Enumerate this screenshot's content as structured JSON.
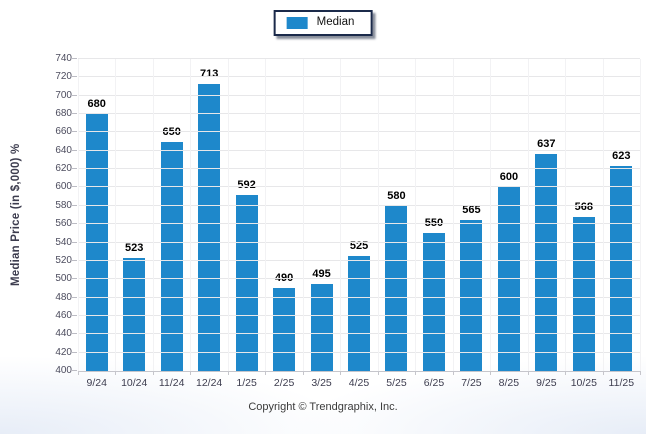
{
  "chart_data": {
    "type": "bar",
    "title": "",
    "categories": [
      "9/24",
      "10/24",
      "11/24",
      "12/24",
      "1/25",
      "2/25",
      "3/25",
      "4/25",
      "5/25",
      "6/25",
      "7/25",
      "8/25",
      "9/25",
      "10/25",
      "11/25"
    ],
    "series": [
      {
        "name": "Median",
        "color": "#1e88cb",
        "values": [
          680,
          523,
          650,
          713,
          592,
          490,
          495,
          525,
          580,
          550,
          565,
          600,
          637,
          568,
          623
        ]
      }
    ],
    "ylabel": "Median Price (in $,000) %",
    "xlabel": "",
    "ylim": [
      400,
      740
    ],
    "ytick_step": 20,
    "yticks": [
      400,
      420,
      440,
      460,
      480,
      500,
      520,
      540,
      560,
      580,
      600,
      620,
      640,
      660,
      680,
      700,
      720,
      740
    ],
    "grid": "horizontal major lines with faint vertical category lines",
    "legend_position": "top-center",
    "bar_value_labels": true
  },
  "colors": {
    "bar": "#1e88cb",
    "gridline": "#e7e7e9",
    "axis_line": "#c6c6cc",
    "legend_border": "#1b2a4a"
  },
  "footer": {
    "copyright": "Copyright © Trendgraphix, Inc."
  }
}
